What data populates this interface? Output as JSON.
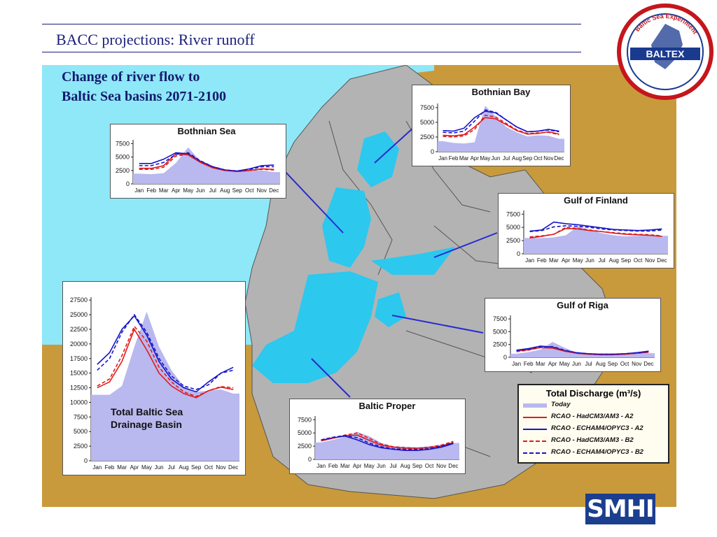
{
  "slide": {
    "title": "BACC projections: River runoff",
    "map_title_line1": "Change of river flow to",
    "map_title_line2": "Baltic Sea basins 2071-2100"
  },
  "logos": {
    "baltex_text": "BALTEX",
    "baltex_ring": "Baltic Sea Experiment",
    "smhi": "SMHI"
  },
  "legend": {
    "title": "Total Discharge (m³/s)",
    "items": [
      {
        "label": "Today",
        "color": "#b9b8ef",
        "style": "band"
      },
      {
        "label": "RCAO - HadCM3/AM3 - A2",
        "color": "#e01b1b",
        "style": "solid"
      },
      {
        "label": "RCAO - ECHAM4/OPYC3 - A2",
        "color": "#1515c8",
        "style": "solid"
      },
      {
        "label": "RCAO - HadCM3/AM3 - B2",
        "color": "#e01b1b",
        "style": "dashed"
      },
      {
        "label": "RCAO - ECHAM4/OPYC3 - B2",
        "color": "#1515c8",
        "style": "dashed"
      }
    ]
  },
  "chart_data": [
    {
      "type": "area",
      "title": "Bothnian Bay",
      "categories": [
        "Jan",
        "Feb",
        "Mar",
        "Apr",
        "May",
        "Jun",
        "Jul",
        "Aug",
        "Sep",
        "Oct",
        "Nov",
        "Dec"
      ],
      "yticks": [
        0,
        2500,
        5000,
        7500
      ],
      "ylim": [
        0,
        8200
      ],
      "series": [
        {
          "name": "Today",
          "values": [
            1800,
            1500,
            1400,
            1600,
            7800,
            6000,
            4200,
            3300,
            2600,
            2800,
            2700,
            2200
          ]
        },
        {
          "name": "RCAO - HadCM3/AM3 - A2",
          "values": [
            2800,
            2700,
            2900,
            4200,
            5800,
            5600,
            4600,
            3600,
            3000,
            3100,
            3400,
            3000
          ]
        },
        {
          "name": "RCAO - ECHAM4/OPYC3 - A2",
          "values": [
            3600,
            3500,
            4000,
            5800,
            6900,
            6600,
            5400,
            4200,
            3400,
            3500,
            3800,
            3500
          ]
        },
        {
          "name": "RCAO - HadCM3/AM3 - B2",
          "values": [
            2600,
            2500,
            2700,
            3800,
            6200,
            5900,
            4800,
            3700,
            3100,
            3200,
            3300,
            2900
          ]
        },
        {
          "name": "RCAO - ECHAM4/OPYC3 - B2",
          "values": [
            3300,
            3200,
            3500,
            5200,
            7100,
            6700,
            5400,
            4200,
            3400,
            3500,
            3700,
            3400
          ]
        }
      ]
    },
    {
      "type": "area",
      "title": "Bothnian Sea",
      "categories": [
        "Jan",
        "Feb",
        "Mar",
        "Apr",
        "May",
        "Jun",
        "Jul",
        "Aug",
        "Sep",
        "Oct",
        "Nov",
        "Dec"
      ],
      "yticks": [
        0,
        2500,
        5000,
        7500
      ],
      "ylim": [
        0,
        8200
      ],
      "series": [
        {
          "name": "Today",
          "values": [
            1900,
            1800,
            2000,
            3900,
            6800,
            4200,
            3100,
            2500,
            2200,
            2500,
            2500,
            2200
          ]
        },
        {
          "name": "RCAO - HadCM3/AM3 - A2",
          "values": [
            2900,
            2900,
            3400,
            5600,
            5400,
            4000,
            3000,
            2500,
            2300,
            2500,
            2800,
            2700
          ]
        },
        {
          "name": "RCAO - ECHAM4/OPYC3 - A2",
          "values": [
            3800,
            3800,
            4600,
            5800,
            5600,
            4200,
            3200,
            2600,
            2400,
            2800,
            3400,
            3500
          ]
        },
        {
          "name": "RCAO - HadCM3/AM3 - B2",
          "values": [
            2700,
            2700,
            3100,
            5200,
            5500,
            4100,
            3000,
            2500,
            2300,
            2500,
            2700,
            2600
          ]
        },
        {
          "name": "RCAO - ECHAM4/OPYC3 - B2",
          "values": [
            3400,
            3400,
            4000,
            5500,
            5800,
            4300,
            3200,
            2600,
            2400,
            2700,
            3200,
            3200
          ]
        }
      ]
    },
    {
      "type": "area",
      "title": "Gulf of Finland",
      "categories": [
        "Jan",
        "Feb",
        "Mar",
        "Apr",
        "May",
        "Jun",
        "Jul",
        "Aug",
        "Sep",
        "Oct",
        "Nov",
        "Dec"
      ],
      "yticks": [
        0,
        2500,
        5000,
        7500
      ],
      "ylim": [
        0,
        8200
      ],
      "series": [
        {
          "name": "Today",
          "values": [
            3000,
            3000,
            3100,
            3500,
            5200,
            4500,
            3900,
            3500,
            3300,
            3400,
            3500,
            3400
          ]
        },
        {
          "name": "RCAO - HadCM3/AM3 - A2",
          "values": [
            3000,
            3300,
            3700,
            4800,
            4700,
            4400,
            4200,
            3900,
            3700,
            3600,
            3500,
            3300
          ]
        },
        {
          "name": "RCAO - ECHAM4/OPYC3 - A2",
          "values": [
            4300,
            4500,
            6000,
            5700,
            5500,
            5200,
            4900,
            4600,
            4500,
            4400,
            4500,
            4700
          ]
        },
        {
          "name": "RCAO - HadCM3/AM3 - B2",
          "values": [
            3200,
            3400,
            3700,
            5000,
            4800,
            4500,
            4200,
            4000,
            3800,
            3700,
            3600,
            3400
          ]
        },
        {
          "name": "RCAO - ECHAM4/OPYC3 - B2",
          "values": [
            4200,
            4400,
            5100,
            5300,
            5200,
            5000,
            4700,
            4500,
            4400,
            4300,
            4300,
            4500
          ]
        }
      ]
    },
    {
      "type": "area",
      "title": "Gulf of Riga",
      "categories": [
        "Jan",
        "Feb",
        "Mar",
        "Apr",
        "May",
        "Jun",
        "Jul",
        "Aug",
        "Sep",
        "Oct",
        "Nov",
        "Dec"
      ],
      "yticks": [
        0,
        2500,
        5000,
        7500
      ],
      "ylim": [
        0,
        8200
      ],
      "series": [
        {
          "name": "Today",
          "values": [
            700,
            1000,
            1500,
            3000,
            1900,
            900,
            600,
            500,
            500,
            600,
            800,
            800
          ]
        },
        {
          "name": "RCAO - HadCM3/AM3 - A2",
          "values": [
            1200,
            1500,
            1900,
            1800,
            1200,
            800,
            600,
            500,
            500,
            600,
            800,
            1000
          ]
        },
        {
          "name": "RCAO - ECHAM4/OPYC3 - A2",
          "values": [
            1400,
            1700,
            2200,
            2000,
            1300,
            900,
            700,
            600,
            600,
            700,
            900,
            1200
          ]
        },
        {
          "name": "RCAO - HadCM3/AM3 - B2",
          "values": [
            1100,
            1400,
            1900,
            1900,
            1300,
            800,
            600,
            500,
            500,
            600,
            800,
            1000
          ]
        },
        {
          "name": "RCAO - ECHAM4/OPYC3 - B2",
          "values": [
            1300,
            1600,
            2100,
            2100,
            1400,
            900,
            700,
            600,
            600,
            700,
            900,
            1100
          ]
        }
      ]
    },
    {
      "type": "area",
      "title": "Baltic Proper",
      "categories": [
        "Jan",
        "Feb",
        "Mar",
        "Apr",
        "May",
        "Jun",
        "Jul",
        "Aug",
        "Sep",
        "Oct",
        "Nov",
        "Dec"
      ],
      "yticks": [
        0,
        2500,
        5000,
        7500
      ],
      "ylim": [
        0,
        8200
      ],
      "series": [
        {
          "name": "Today",
          "values": [
            3200,
            3700,
            4300,
            5200,
            4400,
            3100,
            2500,
            2400,
            2300,
            2500,
            2800,
            3100
          ]
        },
        {
          "name": "RCAO - HadCM3/AM3 - A2",
          "values": [
            3500,
            4000,
            4500,
            4600,
            3600,
            2700,
            2300,
            2100,
            2100,
            2200,
            2500,
            3200
          ]
        },
        {
          "name": "RCAO - ECHAM4/OPYC3 - A2",
          "values": [
            3600,
            4100,
            4400,
            3700,
            2800,
            2200,
            1900,
            1700,
            1700,
            1900,
            2300,
            3000
          ]
        },
        {
          "name": "RCAO - HadCM3/AM3 - B2",
          "values": [
            3600,
            4100,
            4600,
            5000,
            4000,
            2900,
            2400,
            2200,
            2100,
            2300,
            2700,
            3400
          ]
        },
        {
          "name": "RCAO - ECHAM4/OPYC3 - B2",
          "values": [
            3700,
            4200,
            4500,
            4100,
            3100,
            2400,
            2000,
            1900,
            1900,
            2000,
            2500,
            3100
          ]
        }
      ]
    },
    {
      "type": "area",
      "title": "Total Baltic Sea Drainage Basin",
      "categories": [
        "Jan",
        "Feb",
        "Mar",
        "Apr",
        "May",
        "Jun",
        "Jul",
        "Aug",
        "Sep",
        "Oct",
        "Nov",
        "Dec"
      ],
      "yticks": [
        0,
        2500,
        5000,
        7500,
        10000,
        12500,
        15000,
        17500,
        20000,
        22500,
        25000,
        27500
      ],
      "ylim": [
        0,
        28000
      ],
      "series": [
        {
          "name": "Today",
          "values": [
            11300,
            11300,
            12800,
            19500,
            25500,
            19500,
            15500,
            12700,
            11800,
            12000,
            12200,
            11500
          ]
        },
        {
          "name": "RCAO - HadCM3/AM3 - A2",
          "values": [
            12500,
            13500,
            17000,
            22500,
            19000,
            15000,
            12800,
            11500,
            10800,
            12000,
            12600,
            12200
          ]
        },
        {
          "name": "RCAO - ECHAM4/OPYC3 - A2",
          "values": [
            16500,
            18500,
            22500,
            24800,
            21500,
            17000,
            14000,
            12500,
            11800,
            13500,
            15000,
            16000
          ]
        },
        {
          "name": "RCAO - HadCM3/AM3 - B2",
          "values": [
            12800,
            14000,
            18000,
            23000,
            20500,
            16000,
            13500,
            11800,
            11000,
            12000,
            12700,
            12500
          ]
        },
        {
          "name": "RCAO - ECHAM4/OPYC3 - B2",
          "values": [
            15500,
            17500,
            22000,
            25000,
            22000,
            17500,
            14500,
            12800,
            12200,
            13000,
            15000,
            15500
          ]
        }
      ]
    }
  ]
}
